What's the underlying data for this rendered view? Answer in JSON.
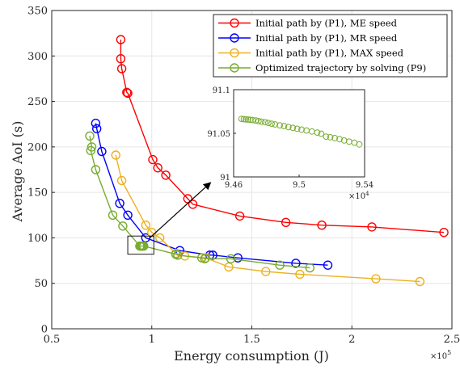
{
  "chart_data": {
    "type": "line",
    "xlabel": "Energy consumption (J)",
    "ylabel": "Average AoI (s)",
    "x_multiplier_label": "×10",
    "x_multiplier_exp": "5",
    "xlim": [
      0.5,
      2.5
    ],
    "ylim": [
      0,
      350
    ],
    "x_ticks": [
      0.5,
      1,
      1.5,
      2,
      2.5
    ],
    "x_tick_labels": [
      "0.5",
      "1",
      "1.5",
      "2",
      "2.5"
    ],
    "y_ticks": [
      0,
      50,
      100,
      150,
      200,
      250,
      300,
      350
    ],
    "y_tick_labels": [
      "0",
      "50",
      "100",
      "150",
      "200",
      "250",
      "300",
      "350"
    ],
    "grid": true,
    "legend_position": "top-right",
    "series": [
      {
        "name": "Initial path by (P1), ME speed",
        "color": "#ff0000",
        "points": [
          [
            0.845,
            318
          ],
          [
            0.845,
            297
          ],
          [
            0.85,
            286
          ],
          [
            0.875,
            260
          ],
          [
            0.88,
            259
          ],
          [
            1.005,
            186
          ],
          [
            1.03,
            177
          ],
          [
            1.07,
            169
          ],
          [
            1.18,
            143
          ],
          [
            1.205,
            137
          ],
          [
            1.44,
            124
          ],
          [
            1.67,
            117
          ],
          [
            1.85,
            114
          ],
          [
            2.1,
            112
          ],
          [
            2.46,
            106
          ]
        ]
      },
      {
        "name": "Initial path by (P1), MR speed",
        "color": "#0000ff",
        "points": [
          [
            0.72,
            226
          ],
          [
            0.725,
            220
          ],
          [
            0.75,
            195
          ],
          [
            0.84,
            138
          ],
          [
            0.88,
            125
          ],
          [
            0.97,
            100
          ],
          [
            1.14,
            86
          ],
          [
            1.29,
            81
          ],
          [
            1.305,
            81
          ],
          [
            1.43,
            78
          ],
          [
            1.72,
            72
          ],
          [
            1.88,
            70
          ]
        ]
      },
      {
        "name": "Initial path by (P1), MAX speed",
        "color": "#edb120",
        "points": [
          [
            0.82,
            191
          ],
          [
            0.85,
            163
          ],
          [
            0.97,
            114
          ],
          [
            1.0,
            106
          ],
          [
            1.04,
            100
          ],
          [
            1.12,
            83
          ],
          [
            1.165,
            80
          ],
          [
            1.27,
            78
          ],
          [
            1.385,
            68
          ],
          [
            1.57,
            63
          ],
          [
            1.74,
            60
          ],
          [
            2.12,
            55
          ],
          [
            2.34,
            52
          ]
        ]
      },
      {
        "name": "Optimized trajectory by solving (P9)",
        "color": "#77ac30",
        "points": [
          [
            0.69,
            212
          ],
          [
            0.7,
            200
          ],
          [
            0.695,
            196
          ],
          [
            0.72,
            175
          ],
          [
            0.805,
            125
          ],
          [
            0.855,
            113
          ],
          [
            0.94,
            91
          ],
          [
            0.945,
            91
          ],
          [
            0.95,
            91
          ],
          [
            0.955,
            91
          ],
          [
            0.96,
            91
          ],
          [
            1.12,
            82
          ],
          [
            1.13,
            81
          ],
          [
            1.25,
            78
          ],
          [
            1.265,
            77
          ],
          [
            1.395,
            77
          ],
          [
            1.64,
            70
          ],
          [
            1.79,
            67
          ]
        ]
      }
    ],
    "inset": {
      "x_ticks": [
        9.46,
        9.5,
        9.54
      ],
      "x_tick_labels": [
        "9.46",
        "9.5",
        "9.54"
      ],
      "y_ticks": [
        91,
        91.05,
        91.1
      ],
      "y_tick_labels": [
        "91",
        "91.05",
        "91.1"
      ],
      "xlim": [
        9.46,
        9.54
      ],
      "ylim": [
        91,
        91.1
      ],
      "x_multiplier_label": "×10",
      "x_multiplier_exp": "4",
      "color": "#77ac30",
      "points": [
        [
          9.4648,
          91.0666
        ],
        [
          9.4662,
          91.0662
        ],
        [
          9.4675,
          91.0659
        ],
        [
          9.4688,
          91.0657
        ],
        [
          9.4701,
          91.0655
        ],
        [
          9.4716,
          91.0652
        ],
        [
          9.4735,
          91.0646
        ],
        [
          9.4752,
          91.064
        ],
        [
          9.477,
          91.0633
        ],
        [
          9.4792,
          91.0627
        ],
        [
          9.4812,
          91.0619
        ],
        [
          9.4832,
          91.061
        ],
        [
          9.4853,
          91.0602
        ],
        [
          9.4882,
          91.0592
        ],
        [
          9.4908,
          91.0583
        ],
        [
          9.4935,
          91.0571
        ],
        [
          9.4962,
          91.0562
        ],
        [
          9.4988,
          91.0552
        ],
        [
          9.5015,
          91.0543
        ],
        [
          9.5045,
          91.0532
        ],
        [
          9.5078,
          91.052
        ],
        [
          9.5111,
          91.0508
        ],
        [
          9.5135,
          91.0495
        ],
        [
          9.5165,
          91.0462
        ],
        [
          9.519,
          91.0455
        ],
        [
          9.5218,
          91.0445
        ],
        [
          9.5247,
          91.0432
        ],
        [
          9.5275,
          91.0418
        ],
        [
          9.5305,
          91.0405
        ],
        [
          9.5338,
          91.0393
        ],
        [
          9.5368,
          91.0372
        ]
      ]
    }
  }
}
